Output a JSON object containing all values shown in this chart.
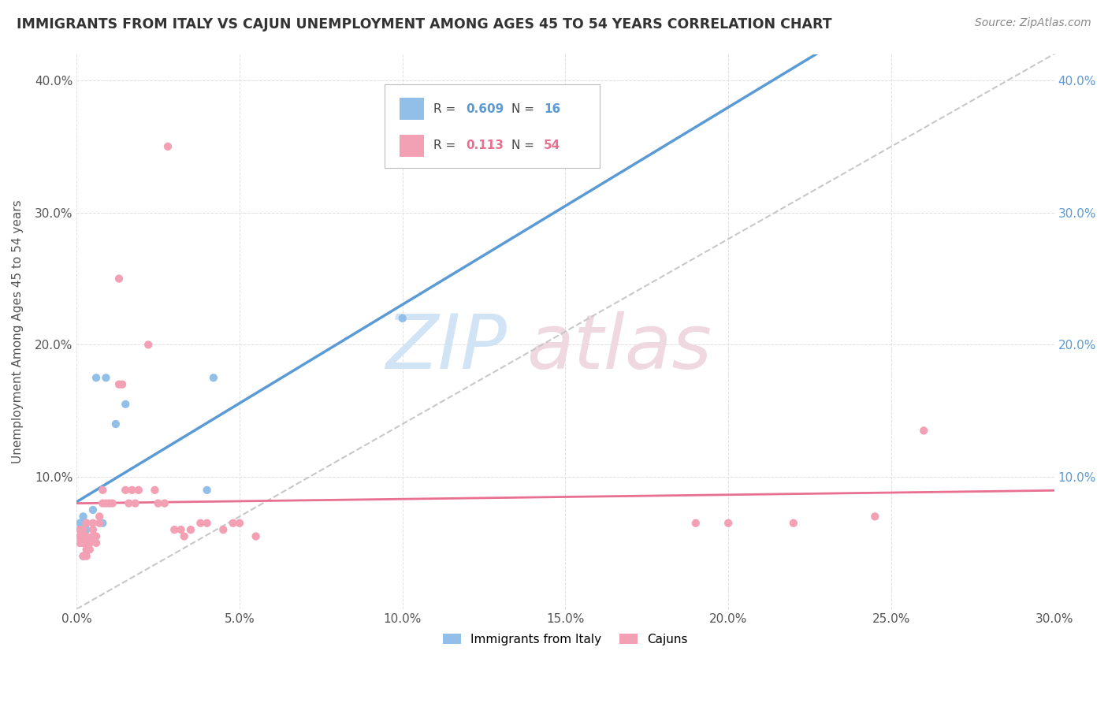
{
  "title": "IMMIGRANTS FROM ITALY VS CAJUN UNEMPLOYMENT AMONG AGES 45 TO 54 YEARS CORRELATION CHART",
  "source": "Source: ZipAtlas.com",
  "ylabel": "Unemployment Among Ages 45 to 54 years",
  "xlim": [
    0.0,
    0.3
  ],
  "ylim": [
    0.0,
    0.42
  ],
  "xticks": [
    0.0,
    0.05,
    0.1,
    0.15,
    0.2,
    0.25,
    0.3
  ],
  "yticks": [
    0.0,
    0.1,
    0.2,
    0.3,
    0.4
  ],
  "xtick_labels": [
    "0.0%",
    "5.0%",
    "10.0%",
    "15.0%",
    "20.0%",
    "25.0%",
    "30.0%"
  ],
  "ytick_labels_left": [
    "",
    "10.0%",
    "20.0%",
    "30.0%",
    "40.0%"
  ],
  "ytick_labels_right": [
    "",
    "10.0%",
    "20.0%",
    "30.0%",
    "40.0%"
  ],
  "italy_color": "#92BFE8",
  "cajun_color": "#F4A0B4",
  "italy_line_color": "#5B9BD5",
  "cajun_line_color": "#E87090",
  "diagonal_color": "#C8C8C8",
  "italy_R": "0.609",
  "italy_N": "16",
  "cajun_R": "0.113",
  "cajun_N": "54",
  "italy_scatter_x": [
    0.001,
    0.001,
    0.002,
    0.002,
    0.003,
    0.003,
    0.004,
    0.005,
    0.006,
    0.008,
    0.009,
    0.012,
    0.015,
    0.04,
    0.042,
    0.1
  ],
  "italy_scatter_y": [
    0.055,
    0.065,
    0.04,
    0.07,
    0.06,
    0.065,
    0.05,
    0.075,
    0.175,
    0.065,
    0.175,
    0.14,
    0.155,
    0.09,
    0.175,
    0.22
  ],
  "cajun_scatter_x": [
    0.001,
    0.001,
    0.001,
    0.002,
    0.002,
    0.002,
    0.002,
    0.003,
    0.003,
    0.003,
    0.003,
    0.003,
    0.004,
    0.004,
    0.005,
    0.005,
    0.005,
    0.006,
    0.006,
    0.007,
    0.007,
    0.008,
    0.008,
    0.009,
    0.01,
    0.011,
    0.013,
    0.013,
    0.014,
    0.015,
    0.016,
    0.017,
    0.018,
    0.019,
    0.022,
    0.024,
    0.025,
    0.027,
    0.028,
    0.03,
    0.032,
    0.033,
    0.035,
    0.038,
    0.04,
    0.045,
    0.048,
    0.05,
    0.055,
    0.19,
    0.2,
    0.22,
    0.245,
    0.26
  ],
  "cajun_scatter_y": [
    0.05,
    0.055,
    0.06,
    0.04,
    0.05,
    0.055,
    0.06,
    0.04,
    0.045,
    0.05,
    0.055,
    0.065,
    0.045,
    0.05,
    0.055,
    0.06,
    0.065,
    0.05,
    0.055,
    0.065,
    0.07,
    0.08,
    0.09,
    0.08,
    0.08,
    0.08,
    0.25,
    0.17,
    0.17,
    0.09,
    0.08,
    0.09,
    0.08,
    0.09,
    0.2,
    0.09,
    0.08,
    0.08,
    0.35,
    0.06,
    0.06,
    0.055,
    0.06,
    0.065,
    0.065,
    0.06,
    0.065,
    0.065,
    0.055,
    0.065,
    0.065,
    0.065,
    0.07,
    0.135
  ],
  "watermark_zip_color": "#D0E4F5",
  "watermark_atlas_color": "#F0D8E0"
}
